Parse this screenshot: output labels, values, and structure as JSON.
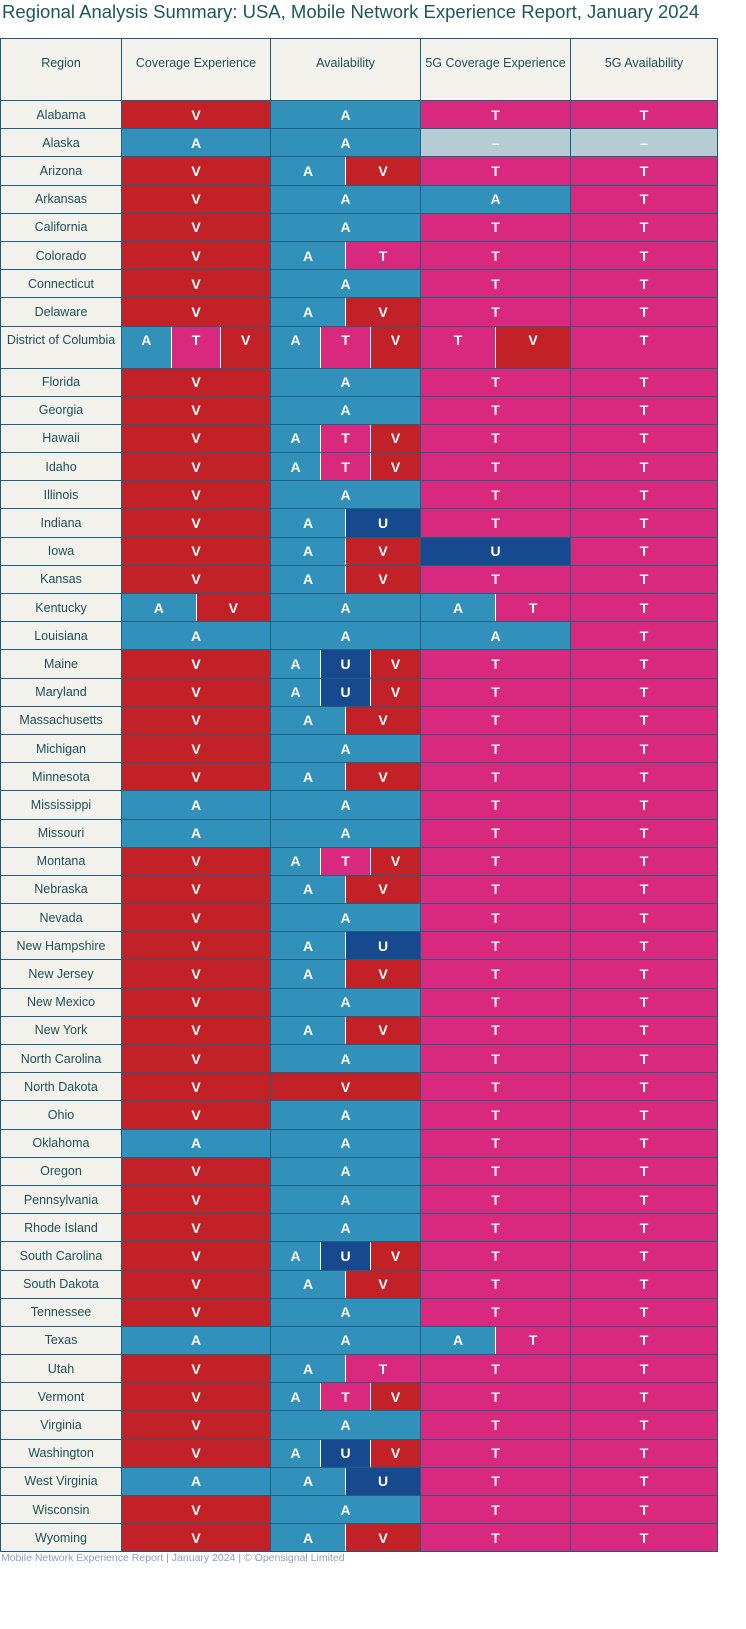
{
  "title": "Regional Analysis Summary: USA, Mobile Network Experience Report, January 2024",
  "columns": [
    "Region",
    "Coverage Experience",
    "Availability",
    "5G Coverage Experience",
    "5G Availability"
  ],
  "colors": {
    "V": "#c22227",
    "A": "#3191ba",
    "T": "#d8297f",
    "U": "#17498e",
    "–": "#b5ccd5"
  },
  "rows": [
    {
      "region": "Alabama",
      "cells": [
        [
          "V"
        ],
        [
          "A"
        ],
        [
          "T"
        ],
        [
          "T"
        ]
      ]
    },
    {
      "region": "Alaska",
      "cells": [
        [
          "A"
        ],
        [
          "A"
        ],
        [
          "–"
        ],
        [
          "–"
        ]
      ]
    },
    {
      "region": "Arizona",
      "cells": [
        [
          "V"
        ],
        [
          "A",
          "V"
        ],
        [
          "T"
        ],
        [
          "T"
        ]
      ]
    },
    {
      "region": "Arkansas",
      "cells": [
        [
          "V"
        ],
        [
          "A"
        ],
        [
          "A"
        ],
        [
          "T"
        ]
      ]
    },
    {
      "region": "California",
      "cells": [
        [
          "V"
        ],
        [
          "A"
        ],
        [
          "T"
        ],
        [
          "T"
        ]
      ]
    },
    {
      "region": "Colorado",
      "cells": [
        [
          "V"
        ],
        [
          "A",
          "T"
        ],
        [
          "T"
        ],
        [
          "T"
        ]
      ]
    },
    {
      "region": "Connecticut",
      "cells": [
        [
          "V"
        ],
        [
          "A"
        ],
        [
          "T"
        ],
        [
          "T"
        ]
      ]
    },
    {
      "region": "Delaware",
      "cells": [
        [
          "V"
        ],
        [
          "A",
          "V"
        ],
        [
          "T"
        ],
        [
          "T"
        ]
      ]
    },
    {
      "region": "District of Columbia",
      "cells": [
        [
          "A",
          "T",
          "V"
        ],
        [
          "A",
          "T",
          "V"
        ],
        [
          "T",
          "V"
        ],
        [
          "T"
        ]
      ]
    },
    {
      "region": "Florida",
      "cells": [
        [
          "V"
        ],
        [
          "A"
        ],
        [
          "T"
        ],
        [
          "T"
        ]
      ]
    },
    {
      "region": "Georgia",
      "cells": [
        [
          "V"
        ],
        [
          "A"
        ],
        [
          "T"
        ],
        [
          "T"
        ]
      ]
    },
    {
      "region": "Hawaii",
      "cells": [
        [
          "V"
        ],
        [
          "A",
          "T",
          "V"
        ],
        [
          "T"
        ],
        [
          "T"
        ]
      ]
    },
    {
      "region": "Idaho",
      "cells": [
        [
          "V"
        ],
        [
          "A",
          "T",
          "V"
        ],
        [
          "T"
        ],
        [
          "T"
        ]
      ]
    },
    {
      "region": "Illinois",
      "cells": [
        [
          "V"
        ],
        [
          "A"
        ],
        [
          "T"
        ],
        [
          "T"
        ]
      ]
    },
    {
      "region": "Indiana",
      "cells": [
        [
          "V"
        ],
        [
          "A",
          "U"
        ],
        [
          "T"
        ],
        [
          "T"
        ]
      ]
    },
    {
      "region": "Iowa",
      "cells": [
        [
          "V"
        ],
        [
          "A",
          "V"
        ],
        [
          "U"
        ],
        [
          "T"
        ]
      ]
    },
    {
      "region": "Kansas",
      "cells": [
        [
          "V"
        ],
        [
          "A",
          "V"
        ],
        [
          "T"
        ],
        [
          "T"
        ]
      ]
    },
    {
      "region": "Kentucky",
      "cells": [
        [
          "A",
          "V"
        ],
        [
          "A"
        ],
        [
          "A",
          "T"
        ],
        [
          "T"
        ]
      ]
    },
    {
      "region": "Louisiana",
      "cells": [
        [
          "A"
        ],
        [
          "A"
        ],
        [
          "A"
        ],
        [
          "T"
        ]
      ]
    },
    {
      "region": "Maine",
      "cells": [
        [
          "V"
        ],
        [
          "A",
          "U",
          "V"
        ],
        [
          "T"
        ],
        [
          "T"
        ]
      ]
    },
    {
      "region": "Maryland",
      "cells": [
        [
          "V"
        ],
        [
          "A",
          "U",
          "V"
        ],
        [
          "T"
        ],
        [
          "T"
        ]
      ]
    },
    {
      "region": "Massachusetts",
      "cells": [
        [
          "V"
        ],
        [
          "A",
          "V"
        ],
        [
          "T"
        ],
        [
          "T"
        ]
      ]
    },
    {
      "region": "Michigan",
      "cells": [
        [
          "V"
        ],
        [
          "A"
        ],
        [
          "T"
        ],
        [
          "T"
        ]
      ]
    },
    {
      "region": "Minnesota",
      "cells": [
        [
          "V"
        ],
        [
          "A",
          "V"
        ],
        [
          "T"
        ],
        [
          "T"
        ]
      ]
    },
    {
      "region": "Mississippi",
      "cells": [
        [
          "A"
        ],
        [
          "A"
        ],
        [
          "T"
        ],
        [
          "T"
        ]
      ]
    },
    {
      "region": "Missouri",
      "cells": [
        [
          "A"
        ],
        [
          "A"
        ],
        [
          "T"
        ],
        [
          "T"
        ]
      ]
    },
    {
      "region": "Montana",
      "cells": [
        [
          "V"
        ],
        [
          "A",
          "T",
          "V"
        ],
        [
          "T"
        ],
        [
          "T"
        ]
      ]
    },
    {
      "region": "Nebraska",
      "cells": [
        [
          "V"
        ],
        [
          "A",
          "V"
        ],
        [
          "T"
        ],
        [
          "T"
        ]
      ]
    },
    {
      "region": "Nevada",
      "cells": [
        [
          "V"
        ],
        [
          "A"
        ],
        [
          "T"
        ],
        [
          "T"
        ]
      ]
    },
    {
      "region": "New Hampshire",
      "cells": [
        [
          "V"
        ],
        [
          "A",
          "U"
        ],
        [
          "T"
        ],
        [
          "T"
        ]
      ]
    },
    {
      "region": "New Jersey",
      "cells": [
        [
          "V"
        ],
        [
          "A",
          "V"
        ],
        [
          "T"
        ],
        [
          "T"
        ]
      ]
    },
    {
      "region": "New Mexico",
      "cells": [
        [
          "V"
        ],
        [
          "A"
        ],
        [
          "T"
        ],
        [
          "T"
        ]
      ]
    },
    {
      "region": "New York",
      "cells": [
        [
          "V"
        ],
        [
          "A",
          "V"
        ],
        [
          "T"
        ],
        [
          "T"
        ]
      ]
    },
    {
      "region": "North Carolina",
      "cells": [
        [
          "V"
        ],
        [
          "A"
        ],
        [
          "T"
        ],
        [
          "T"
        ]
      ]
    },
    {
      "region": "North Dakota",
      "cells": [
        [
          "V"
        ],
        [
          "V"
        ],
        [
          "T"
        ],
        [
          "T"
        ]
      ]
    },
    {
      "region": "Ohio",
      "cells": [
        [
          "V"
        ],
        [
          "A"
        ],
        [
          "T"
        ],
        [
          "T"
        ]
      ]
    },
    {
      "region": "Oklahoma",
      "cells": [
        [
          "A"
        ],
        [
          "A"
        ],
        [
          "T"
        ],
        [
          "T"
        ]
      ]
    },
    {
      "region": "Oregon",
      "cells": [
        [
          "V"
        ],
        [
          "A"
        ],
        [
          "T"
        ],
        [
          "T"
        ]
      ]
    },
    {
      "region": "Pennsylvania",
      "cells": [
        [
          "V"
        ],
        [
          "A"
        ],
        [
          "T"
        ],
        [
          "T"
        ]
      ]
    },
    {
      "region": "Rhode Island",
      "cells": [
        [
          "V"
        ],
        [
          "A"
        ],
        [
          "T"
        ],
        [
          "T"
        ]
      ]
    },
    {
      "region": "South Carolina",
      "cells": [
        [
          "V"
        ],
        [
          "A",
          "U",
          "V"
        ],
        [
          "T"
        ],
        [
          "T"
        ]
      ]
    },
    {
      "region": "South Dakota",
      "cells": [
        [
          "V"
        ],
        [
          "A",
          "V"
        ],
        [
          "T"
        ],
        [
          "T"
        ]
      ]
    },
    {
      "region": "Tennessee",
      "cells": [
        [
          "V"
        ],
        [
          "A"
        ],
        [
          "T"
        ],
        [
          "T"
        ]
      ]
    },
    {
      "region": "Texas",
      "cells": [
        [
          "A"
        ],
        [
          "A"
        ],
        [
          "A",
          "T"
        ],
        [
          "T"
        ]
      ]
    },
    {
      "region": "Utah",
      "cells": [
        [
          "V"
        ],
        [
          "A",
          "T"
        ],
        [
          "T"
        ],
        [
          "T"
        ]
      ]
    },
    {
      "region": "Vermont",
      "cells": [
        [
          "V"
        ],
        [
          "A",
          "T",
          "V"
        ],
        [
          "T"
        ],
        [
          "T"
        ]
      ]
    },
    {
      "region": "Virginia",
      "cells": [
        [
          "V"
        ],
        [
          "A"
        ],
        [
          "T"
        ],
        [
          "T"
        ]
      ]
    },
    {
      "region": "Washington",
      "cells": [
        [
          "V"
        ],
        [
          "A",
          "U",
          "V"
        ],
        [
          "T"
        ],
        [
          "T"
        ]
      ]
    },
    {
      "region": "West Virginia",
      "cells": [
        [
          "A"
        ],
        [
          "A",
          "U"
        ],
        [
          "T"
        ],
        [
          "T"
        ]
      ]
    },
    {
      "region": "Wisconsin",
      "cells": [
        [
          "V"
        ],
        [
          "A"
        ],
        [
          "T"
        ],
        [
          "T"
        ]
      ]
    },
    {
      "region": "Wyoming",
      "cells": [
        [
          "V"
        ],
        [
          "A",
          "V"
        ],
        [
          "T"
        ],
        [
          "T"
        ]
      ]
    }
  ],
  "footer": "Mobile Network Experience Report | January 2024 | © Opensignal Limited"
}
